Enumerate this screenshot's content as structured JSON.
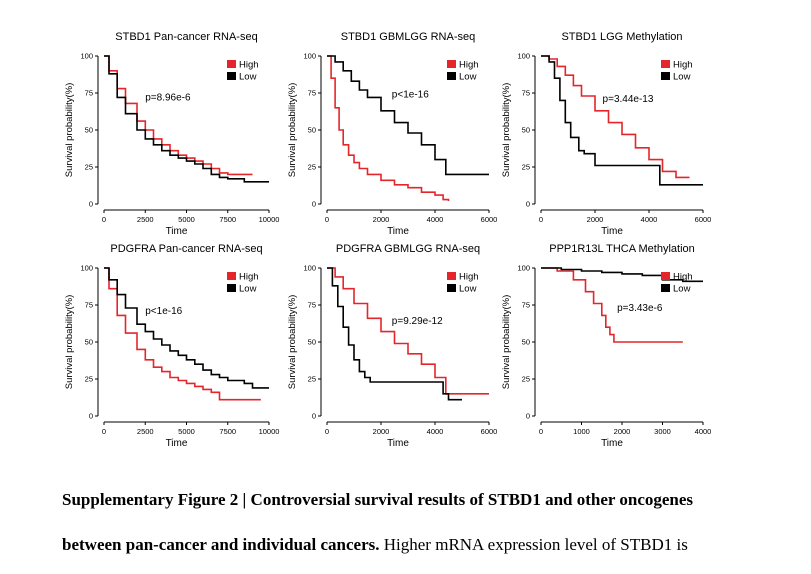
{
  "colors": {
    "high": "#e4262b",
    "low": "#000000",
    "axis": "#000000"
  },
  "chart_data": [
    {
      "type": "line",
      "title": "STBD1 Pan-cancer RNA-seq",
      "xlabel": "Time",
      "ylabel": "Survival probability(%)",
      "xlim": [
        0,
        10000
      ],
      "ylim": [
        0,
        100
      ],
      "xticks": [
        0,
        2500,
        5000,
        7500,
        10000
      ],
      "yticks": [
        0,
        25,
        50,
        75,
        100
      ],
      "legend": [
        "High",
        "Low"
      ],
      "legend_position": "top-right",
      "annotation": "p=8.96e-6",
      "series": [
        {
          "name": "High",
          "x": [
            0,
            300,
            800,
            1300,
            2000,
            2500,
            3000,
            3500,
            4000,
            4500,
            5000,
            5500,
            6000,
            6500,
            7000,
            7500,
            9000
          ],
          "y": [
            100,
            90,
            78,
            68,
            56,
            50,
            44,
            40,
            36,
            33,
            31,
            29,
            27,
            24,
            21,
            20,
            20
          ]
        },
        {
          "name": "Low",
          "x": [
            0,
            300,
            800,
            1300,
            2000,
            2500,
            3000,
            3500,
            4000,
            4500,
            5000,
            5500,
            6000,
            6500,
            7000,
            7500,
            8500,
            10000
          ],
          "y": [
            100,
            88,
            72,
            61,
            50,
            44,
            40,
            36,
            33,
            31,
            29,
            27,
            24,
            20,
            18,
            17,
            15,
            15
          ]
        }
      ]
    },
    {
      "type": "line",
      "title": "STBD1 GBMLGG RNA-seq",
      "xlabel": "Time",
      "ylabel": "Survival probability(%)",
      "xlim": [
        0,
        6000
      ],
      "ylim": [
        0,
        100
      ],
      "xticks": [
        0,
        2000,
        4000,
        6000
      ],
      "yticks": [
        0,
        25,
        50,
        75,
        100
      ],
      "legend": [
        "High",
        "Low"
      ],
      "legend_position": "top-right",
      "annotation": "p<1e-16",
      "series": [
        {
          "name": "High",
          "x": [
            0,
            150,
            300,
            450,
            600,
            800,
            1000,
            1200,
            1500,
            2000,
            2500,
            3000,
            3500,
            4000,
            4300,
            4500
          ],
          "y": [
            100,
            85,
            65,
            50,
            40,
            33,
            28,
            24,
            20,
            16,
            13,
            11,
            8,
            6,
            3,
            2
          ]
        },
        {
          "name": "Low",
          "x": [
            0,
            300,
            600,
            900,
            1200,
            1500,
            2000,
            2500,
            3000,
            3500,
            4000,
            4400,
            5000,
            6000
          ],
          "y": [
            100,
            96,
            90,
            83,
            77,
            72,
            63,
            55,
            48,
            40,
            30,
            20,
            20,
            20
          ]
        }
      ]
    },
    {
      "type": "line",
      "title": "STBD1 LGG Methylation",
      "xlabel": "Time",
      "ylabel": "Survival probability(%)",
      "xlim": [
        0,
        6000
      ],
      "ylim": [
        0,
        100
      ],
      "xticks": [
        0,
        2000,
        4000,
        6000
      ],
      "yticks": [
        0,
        25,
        50,
        75,
        100
      ],
      "legend": [
        "High",
        "Low"
      ],
      "legend_position": "top-right",
      "annotation": "p=3.44e-13",
      "series": [
        {
          "name": "High",
          "x": [
            0,
            300,
            600,
            900,
            1200,
            1500,
            2000,
            2500,
            3000,
            3500,
            4000,
            4500,
            5000,
            5500
          ],
          "y": [
            100,
            98,
            93,
            87,
            80,
            73,
            63,
            55,
            47,
            38,
            30,
            22,
            18,
            18
          ]
        },
        {
          "name": "Low",
          "x": [
            0,
            300,
            500,
            700,
            900,
            1100,
            1400,
            1600,
            2000,
            3000,
            4000,
            4400,
            5000,
            6000
          ],
          "y": [
            100,
            96,
            85,
            70,
            55,
            45,
            36,
            34,
            26,
            26,
            26,
            13,
            13,
            13
          ]
        }
      ]
    },
    {
      "type": "line",
      "title": "PDGFRA Pan-cancer RNA-seq",
      "xlabel": "Time",
      "ylabel": "Survival probability(%)",
      "xlim": [
        0,
        10000
      ],
      "ylim": [
        0,
        100
      ],
      "xticks": [
        0,
        2500,
        5000,
        7500,
        10000
      ],
      "yticks": [
        0,
        25,
        50,
        75,
        100
      ],
      "legend": [
        "High",
        "Low"
      ],
      "legend_position": "top-right",
      "annotation": "p<1e-16",
      "series": [
        {
          "name": "High",
          "x": [
            0,
            300,
            800,
            1300,
            2000,
            2500,
            3000,
            3500,
            4000,
            4500,
            5000,
            5500,
            6000,
            6500,
            7000,
            7500,
            9500
          ],
          "y": [
            100,
            86,
            68,
            56,
            45,
            38,
            33,
            30,
            26,
            24,
            22,
            20,
            18,
            16,
            11,
            11,
            11
          ]
        },
        {
          "name": "Low",
          "x": [
            0,
            300,
            800,
            1300,
            2000,
            2500,
            3000,
            3500,
            4000,
            4500,
            5000,
            5500,
            6000,
            6500,
            7000,
            7500,
            8500,
            9000,
            10000
          ],
          "y": [
            100,
            92,
            82,
            73,
            62,
            57,
            52,
            48,
            44,
            41,
            38,
            35,
            31,
            28,
            26,
            24,
            22,
            19,
            19
          ]
        }
      ]
    },
    {
      "type": "line",
      "title": "PDGFRA GBMLGG RNA-seq",
      "xlabel": "Time",
      "ylabel": "Survival probability(%)",
      "xlim": [
        0,
        6000
      ],
      "ylim": [
        0,
        100
      ],
      "xticks": [
        0,
        2000,
        4000,
        6000
      ],
      "yticks": [
        0,
        25,
        50,
        75,
        100
      ],
      "legend": [
        "High",
        "Low"
      ],
      "legend_position": "top-right",
      "annotation": "p=9.29e-12",
      "series": [
        {
          "name": "High",
          "x": [
            0,
            300,
            600,
            1000,
            1500,
            2000,
            2500,
            3000,
            3500,
            4000,
            4400,
            4500,
            5000,
            6000
          ],
          "y": [
            100,
            94,
            86,
            76,
            66,
            57,
            49,
            42,
            35,
            26,
            15,
            15,
            15,
            15
          ]
        },
        {
          "name": "Low",
          "x": [
            0,
            200,
            400,
            600,
            800,
            1000,
            1200,
            1400,
            1600,
            2000,
            3000,
            4000,
            4300,
            4500,
            5000
          ],
          "y": [
            100,
            88,
            74,
            60,
            48,
            38,
            30,
            26,
            23,
            23,
            23,
            23,
            15,
            11,
            11
          ]
        }
      ]
    },
    {
      "type": "line",
      "title": "PPP1R13L THCA Methylation",
      "xlabel": "Time",
      "ylabel": "Survival probability(%)",
      "xlim": [
        0,
        4000
      ],
      "ylim": [
        0,
        100
      ],
      "xticks": [
        0,
        1000,
        2000,
        3000,
        4000
      ],
      "yticks": [
        0,
        25,
        50,
        75,
        100
      ],
      "legend": [
        "High",
        "Low"
      ],
      "legend_position": "top-right",
      "annotation": "p=3.43e-6",
      "series": [
        {
          "name": "High",
          "x": [
            0,
            400,
            800,
            1100,
            1300,
            1500,
            1600,
            1700,
            1800,
            2500,
            3500
          ],
          "y": [
            100,
            98,
            92,
            84,
            76,
            68,
            60,
            55,
            50,
            50,
            50
          ]
        },
        {
          "name": "Low",
          "x": [
            0,
            500,
            1000,
            1500,
            2000,
            2500,
            3000,
            3500,
            4000
          ],
          "y": [
            100,
            99,
            98,
            97,
            96,
            95,
            92,
            91,
            91
          ]
        }
      ]
    }
  ],
  "caption": {
    "bold_line1": "Supplementary Figure 2 | Controversial survival results of STBD1 and other oncogenes",
    "bold_line2": "between pan-cancer and individual cancers.",
    "normal_line2": " Higher mRNA expression level of STBD1 is"
  }
}
